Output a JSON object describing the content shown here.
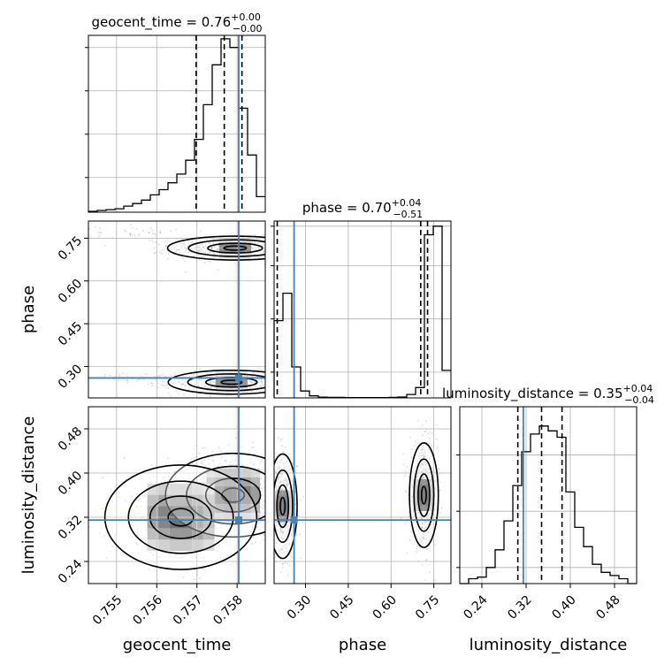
{
  "chart_data": {
    "type": "corner",
    "truth_color": "#4682b4",
    "parameters": [
      {
        "name": "geocent_time",
        "label": "geocent_time",
        "range": [
          0.7543,
          0.7587
        ],
        "ticks": [
          0.755,
          0.756,
          0.757,
          0.758
        ],
        "tick_labels": [
          "0.755",
          "0.756",
          "0.757",
          "0.758"
        ],
        "truth": 0.75804
      },
      {
        "name": "phase",
        "label": "phase",
        "range": [
          0.19,
          0.81
        ],
        "ticks": [
          0.3,
          0.45,
          0.6,
          0.75
        ],
        "tick_labels": [
          "0.30",
          "0.45",
          "0.60",
          "0.75"
        ],
        "truth": 0.26
      },
      {
        "name": "luminosity_distance",
        "label": "luminosity_distance",
        "range": [
          0.2,
          0.52
        ],
        "ticks": [
          0.24,
          0.32,
          0.4,
          0.48
        ],
        "tick_labels": [
          "0.24",
          "0.32",
          "0.40",
          "0.48"
        ],
        "truth": 0.315
      }
    ],
    "marginals": [
      {
        "parameter": "geocent_time",
        "title": {
          "base": "geocent_time = 0.76",
          "sup": "+0.00",
          "sub": "−0.00"
        },
        "quantiles": [
          0.75698,
          0.75768,
          0.75812
        ],
        "bin_edges": [
          0.7543,
          0.75452,
          0.75474,
          0.75496,
          0.75518,
          0.7554,
          0.75562,
          0.75584,
          0.75606,
          0.75628,
          0.7565,
          0.75672,
          0.75694,
          0.75716,
          0.75738,
          0.7576,
          0.75782,
          0.75804,
          0.75826,
          0.75848,
          0.7587
        ],
        "counts": [
          0.005,
          0.01,
          0.015,
          0.02,
          0.035,
          0.05,
          0.07,
          0.1,
          0.13,
          0.17,
          0.22,
          0.3,
          0.42,
          0.62,
          0.85,
          1.0,
          0.95,
          0.6,
          0.33,
          0.09
        ],
        "ylim": [
          0,
          1.02
        ],
        "ticks": [
          0.2,
          0.45,
          0.7,
          0.95
        ]
      },
      {
        "parameter": "phase",
        "title": {
          "base": "phase = 0.70",
          "sup": "+0.04",
          "sub": "−0.51"
        },
        "quantiles": [
          0.201,
          0.704,
          0.728
        ],
        "bin_edges": [
          0.19,
          0.221,
          0.252,
          0.283,
          0.314,
          0.345,
          0.376,
          0.407,
          0.438,
          0.469,
          0.5,
          0.531,
          0.562,
          0.593,
          0.624,
          0.655,
          0.686,
          0.717,
          0.748,
          0.779,
          0.81
        ],
        "counts": [
          0.45,
          0.61,
          0.18,
          0.04,
          0.012,
          0.004,
          0.003,
          0.003,
          0.002,
          0.002,
          0.002,
          0.002,
          0.002,
          0.003,
          0.005,
          0.02,
          0.06,
          0.95,
          1.0,
          0.16
        ],
        "ylim": [
          0,
          1.03
        ],
        "ticks": [
          0.15,
          0.46,
          0.77,
          1.0
        ]
      },
      {
        "parameter": "luminosity_distance",
        "title": {
          "base": "luminosity_distance = 0.35",
          "sup": "+0.04",
          "sub": "−0.04"
        },
        "quantiles": [
          0.305,
          0.348,
          0.385
        ],
        "bin_edges": [
          0.2,
          0.216,
          0.232,
          0.248,
          0.264,
          0.28,
          0.296,
          0.312,
          0.328,
          0.344,
          0.36,
          0.376,
          0.392,
          0.408,
          0.424,
          0.44,
          0.456,
          0.472,
          0.488,
          0.504,
          0.52
        ],
        "counts": [
          0.0,
          0.03,
          0.04,
          0.1,
          0.21,
          0.39,
          0.61,
          0.82,
          0.93,
          0.98,
          0.95,
          0.91,
          0.57,
          0.35,
          0.23,
          0.12,
          0.07,
          0.05,
          0.03,
          0.0
        ],
        "ylim": [
          0,
          1.1
        ],
        "ticks": [
          0.1,
          0.45,
          0.8
        ]
      }
    ],
    "joints": [
      {
        "x": "geocent_time",
        "y": "phase",
        "modes": [
          {
            "center": [
              0.75795,
              0.715
            ],
            "spread": [
              0.0008,
              0.02
            ],
            "weight": 0.5
          },
          {
            "center": [
              0.75786,
              0.245
            ],
            "spread": [
              0.00075,
              0.02
            ],
            "weight": 0.45
          },
          {
            "center": [
              0.7555,
              0.77
            ],
            "spread": [
              0.0005,
              0.012
            ],
            "weight": 0.03
          },
          {
            "center": [
              0.7555,
              0.265
            ],
            "spread": [
              0.0005,
              0.012
            ],
            "weight": 0.02
          }
        ]
      },
      {
        "x": "geocent_time",
        "y": "luminosity_distance",
        "modes": [
          {
            "center": [
              0.7579,
              0.36
            ],
            "spread": [
              0.0008,
              0.036
            ],
            "weight": 0.75
          },
          {
            "center": [
              0.7566,
              0.32
            ],
            "spread": [
              0.0009,
              0.045
            ],
            "weight": 0.25
          }
        ]
      },
      {
        "x": "phase",
        "y": "luminosity_distance",
        "modes": [
          {
            "center": [
              0.715,
              0.36
            ],
            "spread": [
              0.024,
              0.045
            ],
            "weight": 0.5
          },
          {
            "center": [
              0.22,
              0.34
            ],
            "spread": [
              0.024,
              0.045
            ],
            "weight": 0.5
          }
        ]
      }
    ]
  }
}
